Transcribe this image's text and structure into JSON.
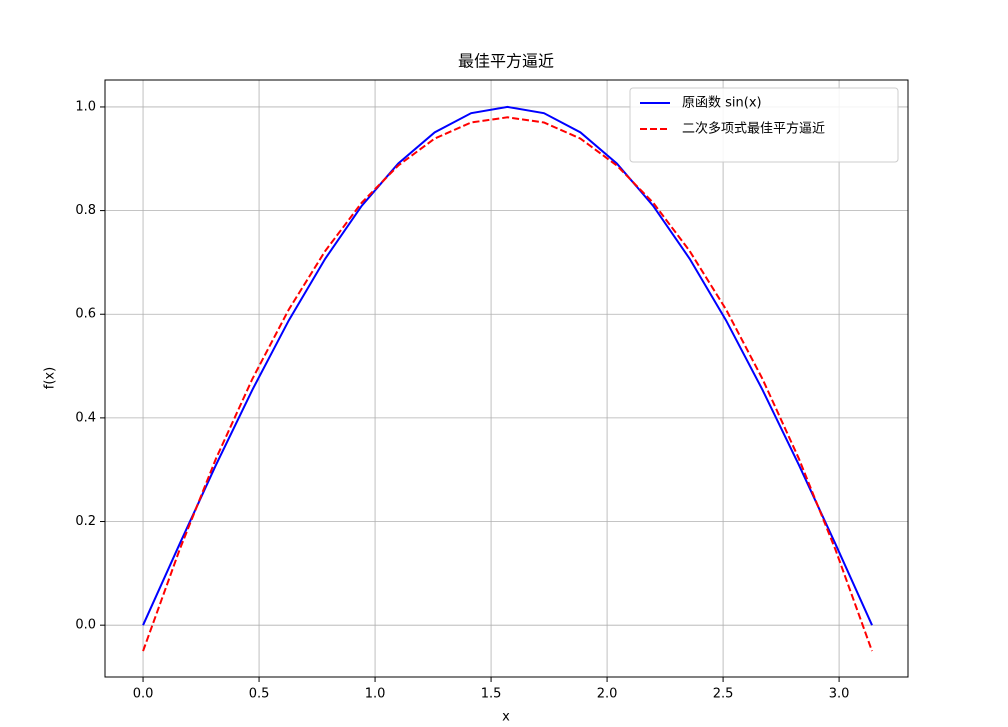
{
  "chart_data": {
    "type": "line",
    "title": "最佳平方逼近",
    "xlabel": "x",
    "ylabel": "f(x)",
    "x": [
      0,
      0.157,
      0.314,
      0.471,
      0.628,
      0.785,
      0.942,
      1.1,
      1.257,
      1.414,
      1.571,
      1.728,
      1.885,
      2.042,
      2.199,
      2.356,
      2.513,
      2.67,
      2.827,
      2.985,
      3.142
    ],
    "series": [
      {
        "name": "原函数 sin(x)",
        "color": "#0000ff",
        "dash": false,
        "values": [
          0,
          0.156,
          0.309,
          0.454,
          0.588,
          0.707,
          0.809,
          0.891,
          0.951,
          0.988,
          1.0,
          0.988,
          0.951,
          0.891,
          0.809,
          0.707,
          0.588,
          0.454,
          0.309,
          0.156,
          0
        ]
      },
      {
        "name": "二次多项式最佳平方逼近",
        "color": "#ff0000",
        "dash": true,
        "values": [
          -0.05,
          0.145,
          0.321,
          0.475,
          0.609,
          0.722,
          0.815,
          0.887,
          0.939,
          0.97,
          0.98,
          0.97,
          0.939,
          0.887,
          0.815,
          0.722,
          0.609,
          0.475,
          0.321,
          0.145,
          -0.05
        ]
      }
    ],
    "xlim": [
      -0.164,
      3.297
    ],
    "ylim": [
      -0.1,
      1.052
    ],
    "xticks": [
      {
        "value": 0,
        "label": "0.0"
      },
      {
        "value": 0.5,
        "label": "0.5"
      },
      {
        "value": 1,
        "label": "1.0"
      },
      {
        "value": 1.5,
        "label": "1.5"
      },
      {
        "value": 2,
        "label": "2.0"
      },
      {
        "value": 2.5,
        "label": "2.5"
      },
      {
        "value": 3,
        "label": "3.0"
      }
    ],
    "yticks": [
      {
        "value": 0,
        "label": "0.0"
      },
      {
        "value": 0.2,
        "label": "0.2"
      },
      {
        "value": 0.4,
        "label": "0.4"
      },
      {
        "value": 0.6,
        "label": "0.6"
      },
      {
        "value": 0.8,
        "label": "0.8"
      },
      {
        "value": 1,
        "label": "1.0"
      }
    ],
    "grid": true,
    "legend": "upper right"
  }
}
